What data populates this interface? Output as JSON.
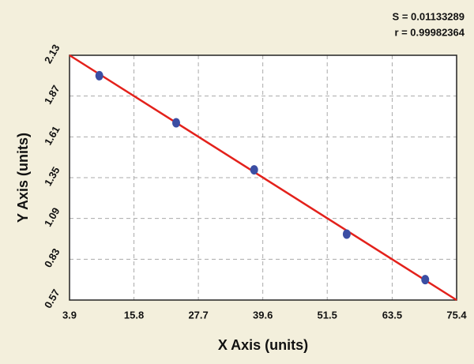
{
  "chart_data": {
    "type": "scatter",
    "annotations": [
      "S = 0.01133289",
      "r = 0.99982364"
    ],
    "x_label": "X Axis (units)",
    "y_label": "Y Axis (units)",
    "x": [
      9.4,
      23.6,
      38.0,
      55.1,
      69.6
    ],
    "values": [
      2.0,
      1.7,
      1.4,
      0.99,
      0.7
    ],
    "color": "#3b4ea3",
    "fit_line": {
      "x": [
        3.9,
        75.4
      ],
      "values": [
        2.13,
        0.57
      ],
      "color": "#e3211b"
    },
    "xlim": [
      3.9,
      75.4
    ],
    "xticks": [
      3.9,
      15.8,
      27.7,
      39.6,
      51.5,
      63.5,
      75.4
    ],
    "ylim": [
      0.57,
      2.13
    ],
    "yticks": [
      0.57,
      0.83,
      1.09,
      1.35,
      1.61,
      1.87,
      2.13
    ],
    "grid": true
  }
}
